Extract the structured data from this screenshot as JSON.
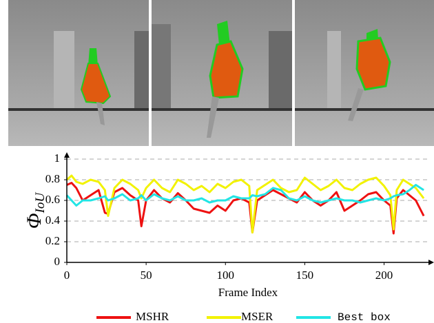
{
  "chart_data": {
    "type": "line",
    "ylabel": {
      "symbol": "Φ",
      "subscript": "IoU"
    },
    "xlabel": "Frame Index",
    "x": [
      0,
      3,
      6,
      10,
      15,
      20,
      24,
      26,
      30,
      35,
      40,
      45,
      47,
      50,
      55,
      60,
      65,
      70,
      75,
      80,
      85,
      90,
      95,
      100,
      105,
      110,
      115,
      117,
      120,
      125,
      130,
      135,
      140,
      145,
      150,
      155,
      160,
      165,
      170,
      175,
      180,
      185,
      190,
      195,
      200,
      204,
      206,
      208,
      212,
      216,
      220,
      225
    ],
    "series": [
      {
        "name": "MSHR",
        "color": "#ee1111",
        "values": [
          0.75,
          0.77,
          0.72,
          0.6,
          0.65,
          0.7,
          0.48,
          0.47,
          0.68,
          0.72,
          0.65,
          0.6,
          0.35,
          0.6,
          0.7,
          0.62,
          0.58,
          0.67,
          0.6,
          0.52,
          0.5,
          0.48,
          0.55,
          0.5,
          0.6,
          0.62,
          0.58,
          0.29,
          0.6,
          0.65,
          0.7,
          0.66,
          0.62,
          0.58,
          0.68,
          0.6,
          0.55,
          0.6,
          0.68,
          0.5,
          0.55,
          0.6,
          0.66,
          0.68,
          0.6,
          0.55,
          0.28,
          0.62,
          0.7,
          0.65,
          0.6,
          0.45
        ]
      },
      {
        "name": "MSER",
        "color": "#f2f200",
        "values": [
          0.8,
          0.84,
          0.78,
          0.76,
          0.8,
          0.78,
          0.7,
          0.45,
          0.72,
          0.8,
          0.76,
          0.7,
          0.62,
          0.72,
          0.8,
          0.72,
          0.68,
          0.8,
          0.76,
          0.7,
          0.74,
          0.68,
          0.76,
          0.72,
          0.78,
          0.8,
          0.74,
          0.29,
          0.7,
          0.75,
          0.8,
          0.72,
          0.68,
          0.7,
          0.82,
          0.76,
          0.7,
          0.74,
          0.8,
          0.72,
          0.7,
          0.76,
          0.8,
          0.82,
          0.74,
          0.65,
          0.32,
          0.7,
          0.8,
          0.76,
          0.72,
          0.62
        ]
      },
      {
        "name": "Best box",
        "color": "#22e5e5",
        "values": [
          0.65,
          0.6,
          0.55,
          0.6,
          0.6,
          0.62,
          0.64,
          0.6,
          0.62,
          0.66,
          0.6,
          0.62,
          0.65,
          0.6,
          0.66,
          0.62,
          0.6,
          0.64,
          0.6,
          0.6,
          0.62,
          0.58,
          0.6,
          0.6,
          0.64,
          0.62,
          0.62,
          0.65,
          0.64,
          0.66,
          0.72,
          0.7,
          0.62,
          0.6,
          0.64,
          0.6,
          0.58,
          0.6,
          0.62,
          0.6,
          0.6,
          0.58,
          0.6,
          0.62,
          0.6,
          0.62,
          0.64,
          0.65,
          0.66,
          0.7,
          0.75,
          0.7
        ]
      }
    ],
    "xlim": [
      0,
      228
    ],
    "xticks": [
      0,
      50,
      100,
      150,
      200
    ],
    "ylim": [
      0,
      1
    ],
    "yticks": [
      0,
      0.2,
      0.4,
      0.6,
      0.8,
      1
    ],
    "grid": true,
    "legend": "bottom"
  }
}
